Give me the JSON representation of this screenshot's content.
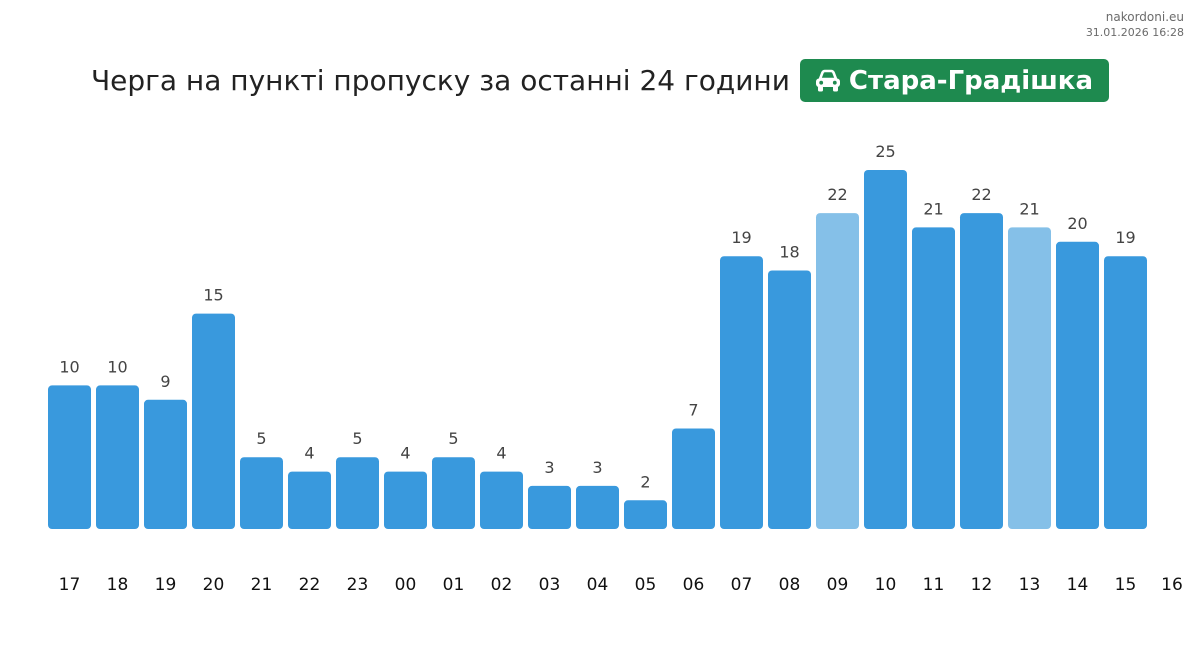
{
  "source": {
    "site": "nakordoni.eu",
    "timestamp": "31.01.2026 16:28"
  },
  "header": {
    "title": "Черга на пункті пропуску за останні 24 години",
    "checkpoint_icon": "car-icon",
    "checkpoint_name": "Стара-Градішка"
  },
  "colors": {
    "bar": "#3999dd",
    "bar_highlight": "#85c0e8",
    "badge": "#1e8a4f",
    "value_label": "#444444",
    "tick_label": "#111111"
  },
  "chart_data": {
    "type": "bar",
    "title": "",
    "xlabel": "",
    "ylabel": "",
    "x_ticks": [
      "17",
      "18",
      "19",
      "20",
      "21",
      "22",
      "23",
      "00",
      "01",
      "02",
      "03",
      "04",
      "05",
      "06",
      "07",
      "08",
      "09",
      "10",
      "11",
      "12",
      "13",
      "14",
      "15",
      "16"
    ],
    "categories": [
      "17",
      "18",
      "19",
      "20",
      "21",
      "22",
      "23",
      "00",
      "01",
      "02",
      "03",
      "04",
      "05",
      "06",
      "07",
      "08",
      "09",
      "10",
      "11",
      "12",
      "13",
      "14",
      "15"
    ],
    "values": [
      10,
      10,
      9,
      15,
      5,
      4,
      5,
      4,
      5,
      4,
      3,
      3,
      2,
      7,
      19,
      18,
      22,
      25,
      21,
      22,
      21,
      20,
      19
    ],
    "highlighted": [
      "09",
      "13"
    ],
    "ylim": [
      0,
      25
    ],
    "grid": false,
    "legend": "none"
  }
}
